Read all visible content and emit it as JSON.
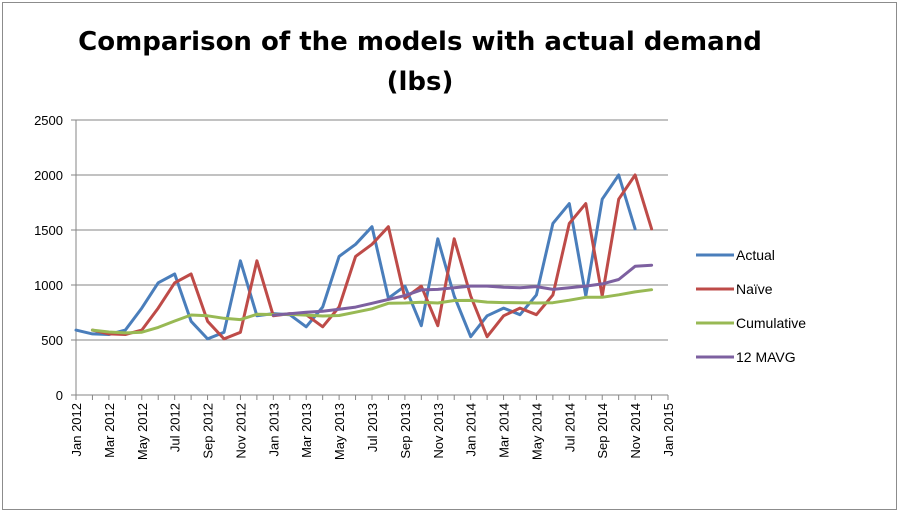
{
  "chart_data": {
    "type": "line",
    "title": "Comparison of the models with actual demand (lbs)",
    "title_lines": [
      "Comparison of the models with actual demand",
      "(lbs)"
    ],
    "xlabel": "",
    "ylabel": "",
    "ylim": [
      0,
      2500
    ],
    "yticks": [
      0,
      500,
      1000,
      1500,
      2000,
      2500
    ],
    "grid": "horizontal",
    "legend_position": "right",
    "categories": [
      "Jan 2012",
      "Feb 2012",
      "Mar 2012",
      "Apr 2012",
      "May 2012",
      "Jun 2012",
      "Jul 2012",
      "Aug 2012",
      "Sep 2012",
      "Oct 2012",
      "Nov 2012",
      "Dec 2012",
      "Jan 2013",
      "Feb 2013",
      "Mar 2013",
      "Apr 2013",
      "May 2013",
      "Jun 2013",
      "Jul 2013",
      "Aug 2013",
      "Sep 2013",
      "Oct 2013",
      "Nov 2013",
      "Dec 2013",
      "Jan 2014",
      "Feb 2014",
      "Mar 2014",
      "Apr 2014",
      "May 2014",
      "Jun 2014",
      "Jul 2014",
      "Aug 2014",
      "Sep 2014",
      "Oct 2014",
      "Nov 2014",
      "Dec 2014",
      "Jan 2015"
    ],
    "tick_labels": [
      "Jan 2012",
      "Mar 2012",
      "May 2012",
      "Jul 2012",
      "Sep 2012",
      "Nov 2012",
      "Jan 2013",
      "Mar 2013",
      "May 2013",
      "Jul 2013",
      "Sep 2013",
      "Nov 2013",
      "Jan 2014",
      "Mar 2014",
      "May 2014",
      "Jul 2014",
      "Sep 2014",
      "Nov 2014",
      "Jan 2015"
    ],
    "series": [
      {
        "name": "Actual",
        "color": "#4a7ebb",
        "values": [
          590,
          555,
          550,
          590,
          790,
          1020,
          1100,
          670,
          510,
          570,
          1220,
          720,
          740,
          730,
          620,
          800,
          1260,
          1370,
          1530,
          880,
          990,
          630,
          1420,
          900,
          530,
          720,
          790,
          730,
          910,
          1560,
          1740,
          900,
          1780,
          2000,
          1510,
          null,
          null
        ]
      },
      {
        "name": "Naïve",
        "color": "#be4b48",
        "values": [
          null,
          590,
          555,
          550,
          590,
          790,
          1020,
          1100,
          670,
          510,
          570,
          1220,
          720,
          740,
          730,
          620,
          800,
          1260,
          1370,
          1530,
          880,
          990,
          630,
          1420,
          900,
          530,
          720,
          790,
          730,
          910,
          1560,
          1740,
          900,
          1780,
          2000,
          1510,
          null
        ]
      },
      {
        "name": "Cumulative",
        "color": "#98b954",
        "values": [
          null,
          590,
          573,
          565,
          571,
          615,
          673,
          727,
          720,
          697,
          685,
          734,
          732,
          733,
          726,
          718,
          723,
          753,
          784,
          834,
          836,
          843,
          836,
          859,
          860,
          845,
          840,
          839,
          836,
          839,
          862,
          888,
          888,
          911,
          937,
          957,
          null
        ]
      },
      {
        "name": "12 MAVG",
        "color": "#7d60a0",
        "values": [
          null,
          null,
          null,
          null,
          null,
          null,
          null,
          null,
          null,
          null,
          null,
          null,
          726,
          738,
          752,
          762,
          780,
          799,
          834,
          869,
          904,
          955,
          960,
          975,
          990,
          990,
          980,
          975,
          985,
          960,
          975,
          990,
          1010,
          1050,
          1170,
          1180,
          null
        ]
      }
    ]
  }
}
